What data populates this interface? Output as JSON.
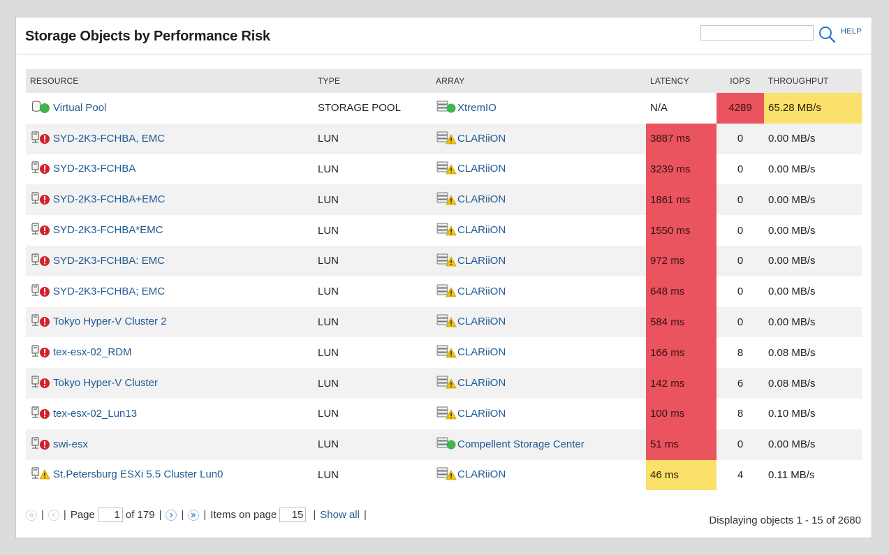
{
  "panel": {
    "title": "Storage Objects by Performance Risk",
    "search_placeholder": "",
    "help_label": "HELP"
  },
  "table": {
    "headers": {
      "resource": "RESOURCE",
      "type": "TYPE",
      "array": "ARRAY",
      "latency": "LATENCY",
      "iops": "IOPS",
      "throughput": "THROUGHPUT"
    },
    "rows": [
      {
        "resource": "Virtual Pool",
        "resource_icon": "storage-pool-ok-icon",
        "type": "STORAGE POOL",
        "array": "XtremIO",
        "array_icon": "array-ok-icon",
        "latency": "N/A",
        "latency_status": "none",
        "iops": "4289",
        "iops_status": "critical",
        "throughput": "65.28 MB/s",
        "throughput_status": "warning"
      },
      {
        "resource": "SYD-2K3-FCHBA, EMC",
        "resource_icon": "lun-critical-icon",
        "type": "LUN",
        "array": "CLARiiON",
        "array_icon": "array-warning-icon",
        "latency": "3887 ms",
        "latency_status": "critical",
        "iops": "0",
        "iops_status": "none",
        "throughput": "0.00 MB/s",
        "throughput_status": "none"
      },
      {
        "resource": "SYD-2K3-FCHBA",
        "resource_icon": "lun-critical-icon",
        "type": "LUN",
        "array": "CLARiiON",
        "array_icon": "array-warning-icon",
        "latency": "3239 ms",
        "latency_status": "critical",
        "iops": "0",
        "iops_status": "none",
        "throughput": "0.00 MB/s",
        "throughput_status": "none"
      },
      {
        "resource": "SYD-2K3-FCHBA+EMC",
        "resource_icon": "lun-critical-icon",
        "type": "LUN",
        "array": "CLARiiON",
        "array_icon": "array-warning-icon",
        "latency": "1861 ms",
        "latency_status": "critical",
        "iops": "0",
        "iops_status": "none",
        "throughput": "0.00 MB/s",
        "throughput_status": "none"
      },
      {
        "resource": "SYD-2K3-FCHBA*EMC",
        "resource_icon": "lun-critical-icon",
        "type": "LUN",
        "array": "CLARiiON",
        "array_icon": "array-warning-icon",
        "latency": "1550 ms",
        "latency_status": "critical",
        "iops": "0",
        "iops_status": "none",
        "throughput": "0.00 MB/s",
        "throughput_status": "none"
      },
      {
        "resource": "SYD-2K3-FCHBA: EMC",
        "resource_icon": "lun-critical-icon",
        "type": "LUN",
        "array": "CLARiiON",
        "array_icon": "array-warning-icon",
        "latency": "972 ms",
        "latency_status": "critical",
        "iops": "0",
        "iops_status": "none",
        "throughput": "0.00 MB/s",
        "throughput_status": "none"
      },
      {
        "resource": "SYD-2K3-FCHBA; EMC",
        "resource_icon": "lun-critical-icon",
        "type": "LUN",
        "array": "CLARiiON",
        "array_icon": "array-warning-icon",
        "latency": "648 ms",
        "latency_status": "critical",
        "iops": "0",
        "iops_status": "none",
        "throughput": "0.00 MB/s",
        "throughput_status": "none"
      },
      {
        "resource": "Tokyo Hyper-V Cluster 2",
        "resource_icon": "lun-critical-icon",
        "type": "LUN",
        "array": "CLARiiON",
        "array_icon": "array-warning-icon",
        "latency": "584 ms",
        "latency_status": "critical",
        "iops": "0",
        "iops_status": "none",
        "throughput": "0.00 MB/s",
        "throughput_status": "none"
      },
      {
        "resource": "tex-esx-02_RDM",
        "resource_icon": "lun-critical-icon",
        "type": "LUN",
        "array": "CLARiiON",
        "array_icon": "array-warning-icon",
        "latency": "166 ms",
        "latency_status": "critical",
        "iops": "8",
        "iops_status": "none",
        "throughput": "0.08 MB/s",
        "throughput_status": "none"
      },
      {
        "resource": "Tokyo Hyper-V Cluster",
        "resource_icon": "lun-critical-icon",
        "type": "LUN",
        "array": "CLARiiON",
        "array_icon": "array-warning-icon",
        "latency": "142 ms",
        "latency_status": "critical",
        "iops": "6",
        "iops_status": "none",
        "throughput": "0.08 MB/s",
        "throughput_status": "none"
      },
      {
        "resource": "tex-esx-02_Lun13",
        "resource_icon": "lun-critical-icon",
        "type": "LUN",
        "array": "CLARiiON",
        "array_icon": "array-warning-icon",
        "latency": "100 ms",
        "latency_status": "critical",
        "iops": "8",
        "iops_status": "none",
        "throughput": "0.10 MB/s",
        "throughput_status": "none"
      },
      {
        "resource": "swi-esx",
        "resource_icon": "lun-critical-icon",
        "type": "LUN",
        "array": "Compellent Storage Center",
        "array_icon": "array-ok-icon",
        "latency": "51 ms",
        "latency_status": "critical",
        "iops": "0",
        "iops_status": "none",
        "throughput": "0.00 MB/s",
        "throughput_status": "none"
      },
      {
        "resource": "St.Petersburg ESXi 5.5 Cluster Lun0",
        "resource_icon": "lun-warning-icon",
        "type": "LUN",
        "array": "CLARiiON",
        "array_icon": "array-warning-icon",
        "latency": "46 ms",
        "latency_status": "warning",
        "iops": "4",
        "iops_status": "none",
        "throughput": "0.11 MB/s",
        "throughput_status": "none"
      }
    ]
  },
  "pagination": {
    "page_label": "Page",
    "current_page": "1",
    "of_pages": "of 179",
    "items_label": "Items on page",
    "items_per_page": "15",
    "show_all": "Show all",
    "status": "Displaying objects 1 - 15 of 2680"
  },
  "colors": {
    "critical": "#e9545e",
    "warning": "#fbe06b",
    "ok": "#3fb54a",
    "link": "#1f5a93"
  }
}
